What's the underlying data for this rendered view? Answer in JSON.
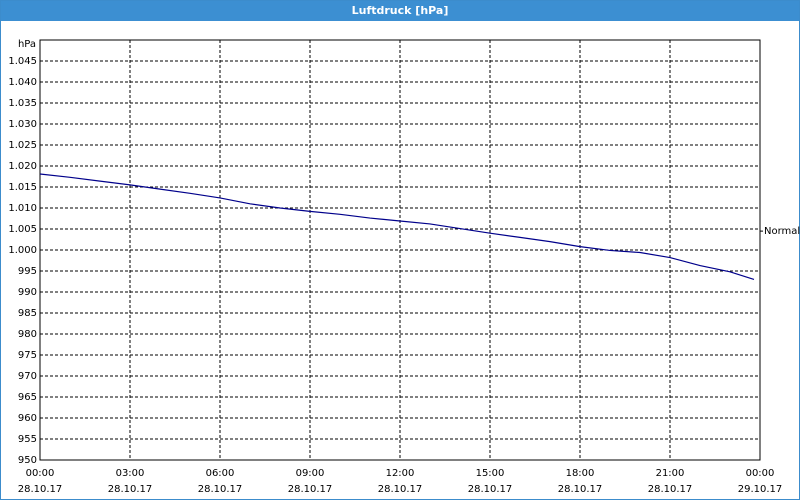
{
  "chart_data": {
    "type": "line",
    "title": "Luftdruck [hPa]",
    "y_label": "hPa",
    "x": [
      0,
      1,
      2,
      3,
      4,
      5,
      6,
      7,
      8,
      9,
      10,
      11,
      12,
      13,
      14,
      15,
      16,
      17,
      18,
      19,
      20,
      21,
      22,
      23,
      23.8
    ],
    "series": [
      {
        "color": "#00008b",
        "values": [
          1018.1,
          1017.3,
          1016.4,
          1015.5,
          1014.5,
          1013.5,
          1012.4,
          1011.0,
          1010.0,
          1009.2,
          1008.5,
          1007.6,
          1006.9,
          1006.2,
          1005.1,
          1004.0,
          1003.0,
          1002.0,
          1000.8,
          999.9,
          999.4,
          998.2,
          996.3,
          994.8,
          993.0
        ]
      }
    ],
    "xlim": [
      0,
      24
    ],
    "xticks": [
      {
        "value": 0,
        "label": "00:00",
        "date": "28.10.17"
      },
      {
        "value": 3,
        "label": "03:00",
        "date": "28.10.17"
      },
      {
        "value": 6,
        "label": "06:00",
        "date": "28.10.17"
      },
      {
        "value": 9,
        "label": "09:00",
        "date": "28.10.17"
      },
      {
        "value": 12,
        "label": "12:00",
        "date": "28.10.17"
      },
      {
        "value": 15,
        "label": "15:00",
        "date": "28.10.17"
      },
      {
        "value": 18,
        "label": "18:00",
        "date": "28.10.17"
      },
      {
        "value": 21,
        "label": "21:00",
        "date": "28.10.17"
      },
      {
        "value": 24,
        "label": "00:00",
        "date": "29.10.17"
      }
    ],
    "ylim": [
      950,
      1050
    ],
    "yticks": [
      950,
      955,
      960,
      965,
      970,
      975,
      980,
      985,
      990,
      995,
      {
        "value": 1000,
        "label": "1.000"
      },
      {
        "value": 1005,
        "label": "1.005"
      },
      {
        "value": 1010,
        "label": "1.010"
      },
      {
        "value": 1015,
        "label": "1.015"
      },
      {
        "value": 1020,
        "label": "1.020"
      },
      {
        "value": 1025,
        "label": "1.025"
      },
      {
        "value": 1030,
        "label": "1.030"
      },
      {
        "value": 1035,
        "label": "1.035"
      },
      {
        "value": 1040,
        "label": "1.040"
      },
      {
        "value": 1045,
        "label": "1.045"
      }
    ],
    "grid": true,
    "annotation": {
      "text": "Normal",
      "value": 1004.5
    }
  }
}
